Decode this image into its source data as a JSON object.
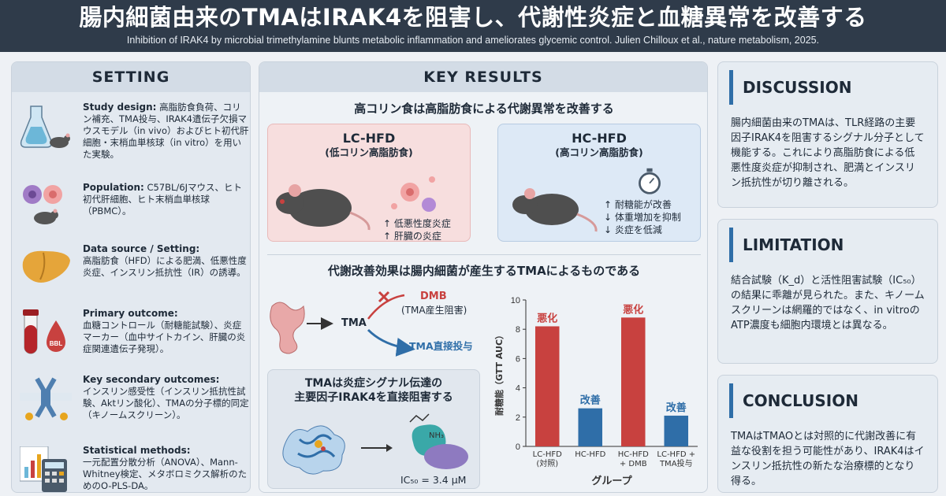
{
  "header": {
    "title": "腸内細菌由来のTMAはIRAK4を阻害し、代謝性炎症と血糖異常を改善する",
    "subtitle": "Inhibition of IRAK4 by microbial trimethylamine blunts metabolic inflammation and ameliorates glycemic control. Julien Chilloux et al., nature metabolism, 2025."
  },
  "setting": {
    "heading": "SETTING",
    "items": [
      {
        "label": "Study design:",
        "text": "高脂肪食負荷、コリン補充、TMA投与、IRAK4遺伝子欠損マウスモデル（in vivo）およびヒト初代肝細胞・末梢血単核球（in vitro）を用いた実験。",
        "icon": "flask-mouse-icon"
      },
      {
        "label": "Population:",
        "text": "C57BL/6Jマウス、ヒト初代肝細胞、ヒト末梢血単核球（PBMC）。",
        "icon": "cells-mouse-icon"
      },
      {
        "label": "Data source / Setting:",
        "text": "高脂肪食（HFD）による肥満、低悪性度炎症、インスリン抵抗性（IR）の誘導。",
        "icon": "liver-icon"
      },
      {
        "label": "Primary outcome:",
        "text": "血糖コントロール（耐糖能試験）、炎症マーカー（血中サイトカイン、肝臓の炎症関連遺伝子発現）。",
        "icon": "blood-tube-icon",
        "drop_text": "BBL"
      },
      {
        "label": "Key secondary outcomes:",
        "text": "インスリン感受性（インスリン抵抗性試験、Aktリン酸化）、TMAの分子標的同定（キノームスクリーン）。",
        "icon": "receptor-icon"
      },
      {
        "label": "Statistical methods:",
        "text": "一元配置分散分析（ANOVA）、Mann-Whitney検定、メタボロミクス解析のためのO-PLS-DA。",
        "icon": "calculator-chart-icon"
      }
    ]
  },
  "key_results": {
    "heading": "KEY RESULTS",
    "section1_title": "高コリン食は高脂肪食による代謝異常を改善する",
    "lc": {
      "title": "LC-HFD",
      "subtitle": "(低コリン高脂肪食)",
      "effects": [
        "↑ 低悪性度炎症",
        "↑ 肝臓の炎症"
      ]
    },
    "hc": {
      "title": "HC-HFD",
      "subtitle": "(高コリン高脂肪食)",
      "effects": [
        "↑ 耐糖能が改善",
        "↓ 体重増加を抑制",
        "↓ 炎症を低減"
      ]
    },
    "section2_title": "代謝改善効果は腸内細菌が産生するTMAによるものである",
    "flow": {
      "tma": "TMA",
      "dmb": "DMB",
      "dmb_sub": "(TMA産生阻害)",
      "direct": "TMA直接投与"
    },
    "section3_title_line1": "TMAは炎症シグナル伝達の",
    "section3_title_line2": "主要因子IRAK4を直接阻害する",
    "molecule_label": "NH₃",
    "ic50": "IC₅₀ = 3.4 μM"
  },
  "chart_data": {
    "type": "bar",
    "categories": [
      "LC-HFD\n(対照)",
      "HC-HFD",
      "HC-HFD\n+ DMB",
      "LC-HFD +\nTMA投与"
    ],
    "values": [
      8.2,
      2.6,
      8.8,
      2.1
    ],
    "bar_labels": [
      "悪化",
      "改善",
      "悪化",
      "改善"
    ],
    "colors": [
      "#c8413f",
      "#2f6ea8",
      "#c8413f",
      "#2f6ea8"
    ],
    "ylabel": "耐糖能（GTT AUC）",
    "xlabel": "グループ",
    "ylim": [
      0,
      10
    ],
    "yticks": [
      0,
      2,
      4,
      6,
      8,
      10
    ]
  },
  "discussion": {
    "heading": "DISCUSSION",
    "text": "腸内細菌由来のTMAは、TLR経路の主要因子IRAK4を阻害するシグナル分子として機能する。これにより高脂肪食による低悪性度炎症が抑制され、肥満とインスリン抵抗性が切り離される。"
  },
  "limitation": {
    "heading": "LIMITATION",
    "text": "結合試験（K_d）と活性阻害試験（IC₅₀）の結果に乖離が見られた。また、キノームスクリーンは網羅的ではなく、in vitroのATP濃度も細胞内環境とは異なる。"
  },
  "conclusion": {
    "heading": "CONCLUSION",
    "text": "TMAはTMAOとは対照的に代謝改善に有益な役割を担う可能性があり、IRAK4はインスリン抵抗性の新たな治療標的となり得る。"
  }
}
